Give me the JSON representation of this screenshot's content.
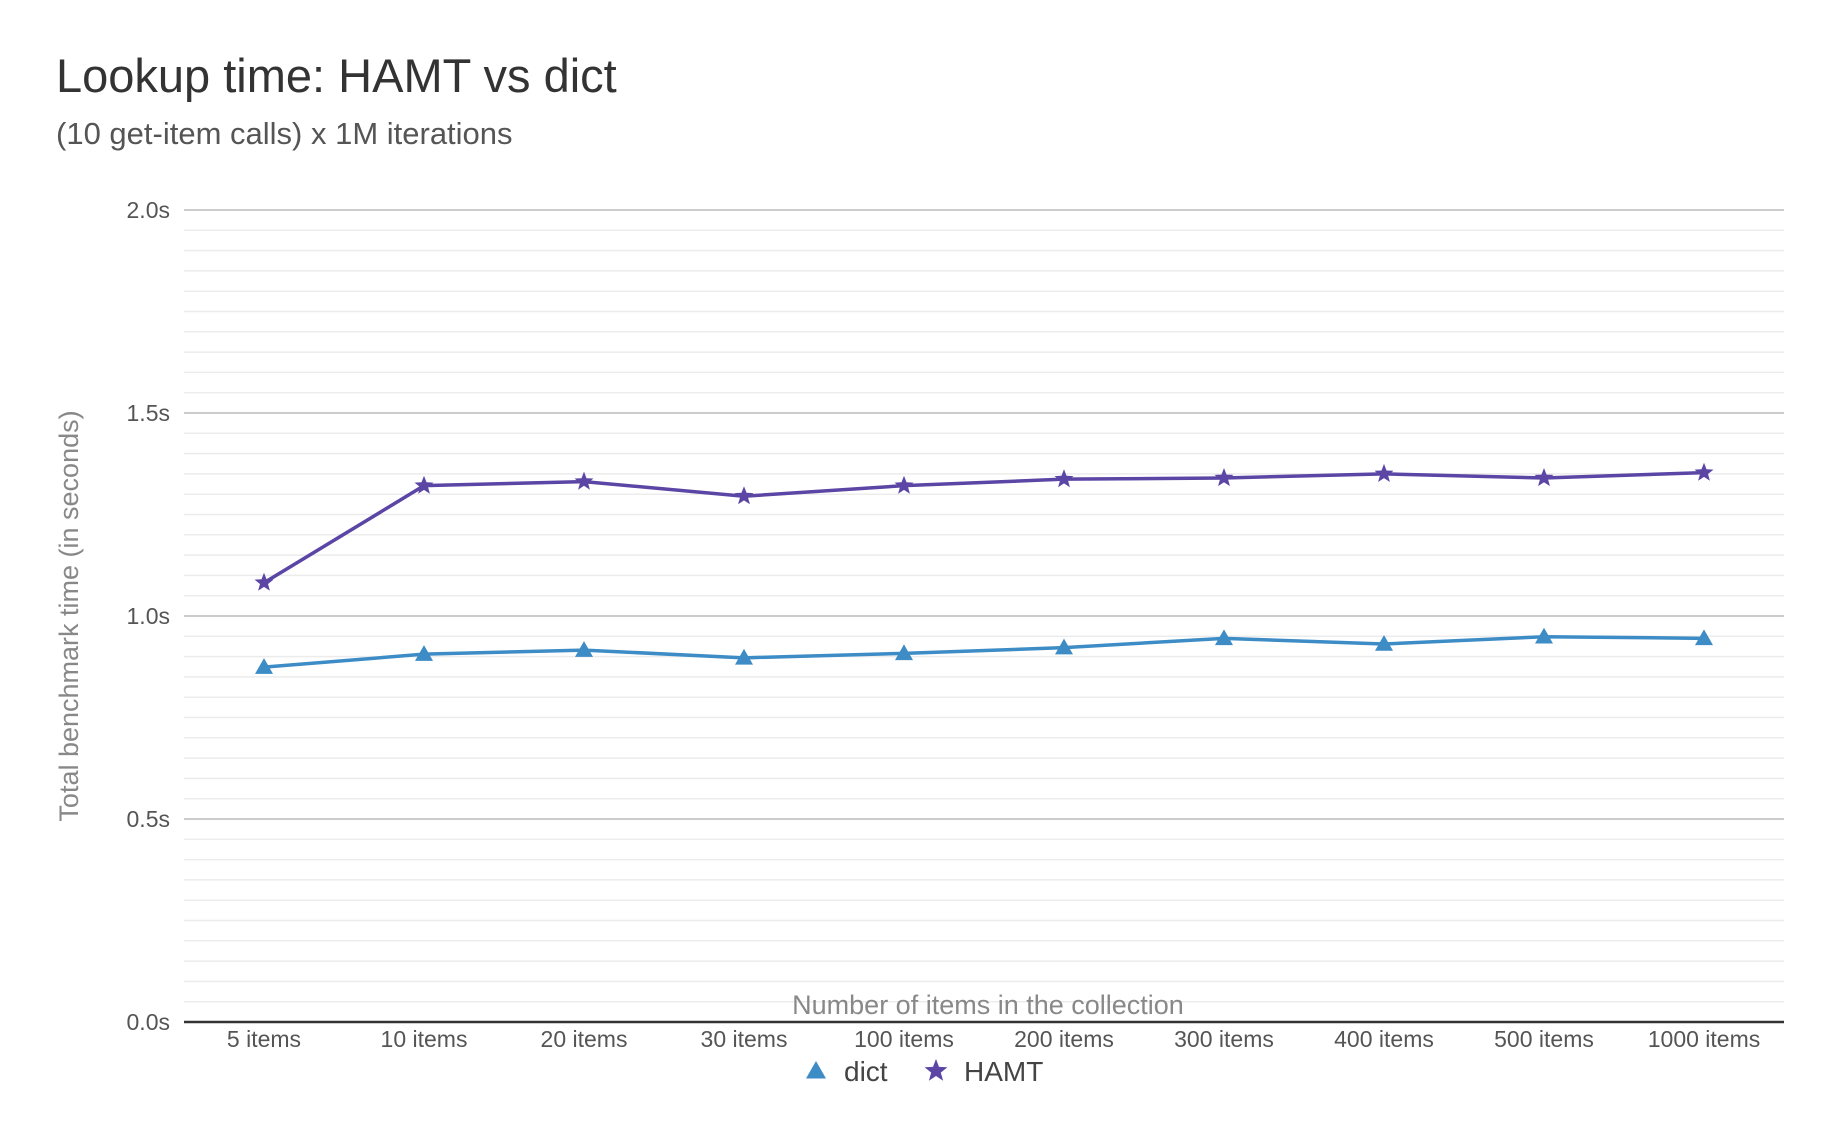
{
  "chart_data": {
    "type": "line",
    "title": "Lookup time: HAMT vs dict",
    "subtitle": "(10 get-item calls) x 1M iterations",
    "xlabel": "Number of items in the collection",
    "ylabel": "Total benchmark time (in seconds)",
    "categories": [
      "5 items",
      "10 items",
      "20 items",
      "30 items",
      "100 items",
      "200 items",
      "300 items",
      "400 items",
      "500 items",
      "1000 items"
    ],
    "ylim": [
      0,
      2.0
    ],
    "yticks": [
      {
        "value": 0,
        "label": "0.0s"
      },
      {
        "value": 0.5,
        "label": "0.5s"
      },
      {
        "value": 1.0,
        "label": "1.0s"
      },
      {
        "value": 1.5,
        "label": "1.5s"
      },
      {
        "value": 2.0,
        "label": "2.0s"
      }
    ],
    "minor_grid_step": 0.05,
    "grid": true,
    "legend_position": "bottom",
    "series": [
      {
        "name": "dict",
        "color": "#3d8cc6",
        "marker": "triangle",
        "values": [
          0.874,
          0.906,
          0.916,
          0.897,
          0.908,
          0.922,
          0.945,
          0.931,
          0.949,
          0.945
        ]
      },
      {
        "name": "HAMT",
        "color": "#5b45a5",
        "marker": "star",
        "values": [
          1.082,
          1.321,
          1.331,
          1.295,
          1.321,
          1.337,
          1.34,
          1.35,
          1.34,
          1.353
        ]
      }
    ]
  }
}
